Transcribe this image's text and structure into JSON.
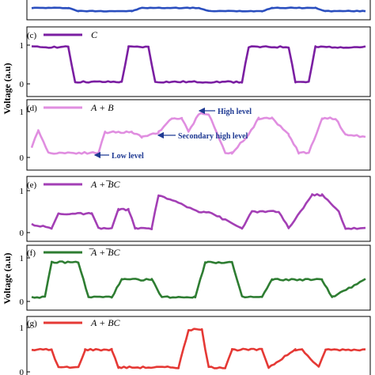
{
  "y_axis_label": "Voltage (a.u)",
  "chart_data": [
    {
      "type": "line",
      "panel": "top (partial)",
      "title": "",
      "ylim": [
        0,
        1
      ],
      "yticks": [],
      "x": [
        0,
        0.11,
        0.14,
        0.3,
        0.33,
        0.5,
        0.53,
        0.69,
        0.72,
        0.85,
        0.88,
        1.0
      ],
      "series": [
        {
          "name": "",
          "color": "#2b4fbf",
          "values": [
            0.2,
            0.2,
            0,
            0,
            0.2,
            0.2,
            0,
            0,
            0.2,
            0.2,
            0,
            0
          ]
        }
      ]
    },
    {
      "type": "line",
      "panel": "(c)",
      "title": "",
      "ylim": [
        0,
        1
      ],
      "yticks": [
        "0",
        "1"
      ],
      "x": [
        0,
        0.11,
        0.13,
        0.27,
        0.29,
        0.35,
        0.37,
        0.63,
        0.65,
        0.77,
        0.79,
        0.83,
        0.85,
        1.0
      ],
      "series": [
        {
          "name": "C",
          "color": "#7b1fa2",
          "values": [
            0.95,
            0.95,
            0.05,
            0.05,
            0.95,
            0.95,
            0.05,
            0.05,
            0.95,
            0.95,
            0.05,
            0.05,
            0.95,
            0.95
          ]
        }
      ]
    },
    {
      "type": "line",
      "panel": "(d)",
      "title": "",
      "ylim": [
        0,
        1
      ],
      "yticks": [
        "0",
        "1"
      ],
      "x": [
        0,
        0.02,
        0.05,
        0.2,
        0.22,
        0.3,
        0.33,
        0.38,
        0.42,
        0.45,
        0.47,
        0.5,
        0.53,
        0.58,
        0.6,
        0.65,
        0.68,
        0.72,
        0.77,
        0.8,
        0.83,
        0.87,
        0.91,
        0.94,
        1.0
      ],
      "series": [
        {
          "name": "A + B",
          "color": "#e08ee0",
          "values": [
            0.2,
            0.6,
            0.1,
            0.1,
            0.55,
            0.55,
            0.45,
            0.55,
            0.85,
            0.85,
            0.55,
            0.95,
            0.95,
            0.1,
            0.1,
            0.5,
            0.85,
            0.85,
            0.5,
            0.1,
            0.1,
            0.85,
            0.85,
            0.5,
            0.45
          ]
        }
      ],
      "annotations": [
        "High level",
        "Secondary high level",
        "Low level"
      ]
    },
    {
      "type": "line",
      "panel": "(e)",
      "title": "",
      "ylim": [
        0,
        1
      ],
      "yticks": [
        "0",
        "1"
      ],
      "x": [
        0,
        0.06,
        0.08,
        0.18,
        0.2,
        0.24,
        0.26,
        0.29,
        0.31,
        0.36,
        0.38,
        0.5,
        0.53,
        0.63,
        0.66,
        0.74,
        0.77,
        0.84,
        0.87,
        0.92,
        0.94,
        1.0
      ],
      "series": [
        {
          "name": "A + ̅BC",
          "color": "#a33fb5",
          "values": [
            0.2,
            0.1,
            0.45,
            0.45,
            0.1,
            0.1,
            0.55,
            0.55,
            0.1,
            0.1,
            0.9,
            0.5,
            0.5,
            0.1,
            0.5,
            0.5,
            0.1,
            0.9,
            0.9,
            0.5,
            0.1,
            0.1
          ]
        }
      ]
    },
    {
      "type": "line",
      "panel": "(f)",
      "title": "",
      "ylim": [
        0,
        1
      ],
      "yticks": [
        "0",
        "1"
      ],
      "x": [
        0,
        0.04,
        0.06,
        0.14,
        0.17,
        0.24,
        0.27,
        0.36,
        0.39,
        0.49,
        0.52,
        0.6,
        0.63,
        0.69,
        0.72,
        0.87,
        0.9,
        1.0
      ],
      "series": [
        {
          "name": "̅A + ̅BC",
          "color": "#2e7d32",
          "values": [
            0.1,
            0.1,
            0.9,
            0.9,
            0.1,
            0.1,
            0.5,
            0.5,
            0.1,
            0.1,
            0.9,
            0.9,
            0.1,
            0.1,
            0.5,
            0.5,
            0.1,
            0.5
          ]
        }
      ]
    },
    {
      "type": "line",
      "panel": "(g)",
      "title": "",
      "ylim": [
        0,
        1
      ],
      "yticks": [
        "0",
        "1"
      ],
      "x": [
        0,
        0.06,
        0.08,
        0.14,
        0.16,
        0.24,
        0.26,
        0.44,
        0.47,
        0.51,
        0.53,
        0.58,
        0.6,
        0.69,
        0.71,
        0.79,
        0.81,
        0.86,
        0.88,
        1.0
      ],
      "series": [
        {
          "name": "A + BC",
          "color": "#e53935",
          "values": [
            0.5,
            0.5,
            0.1,
            0.1,
            0.5,
            0.5,
            0.1,
            0.1,
            0.95,
            0.95,
            0.1,
            0.1,
            0.5,
            0.5,
            0.1,
            0.5,
            0.5,
            0.1,
            0.5,
            0.5
          ]
        }
      ]
    }
  ],
  "panel_labels": [
    "(c)",
    "(d)",
    "(e)",
    "(f)",
    "(g)"
  ],
  "legend_names": [
    "C",
    "A + B",
    "A + ̅BC",
    "̅A + ̅BC",
    "A + BC"
  ],
  "annotations": {
    "high": "High level",
    "secondary": "Secondary high level",
    "low": "Low level"
  }
}
